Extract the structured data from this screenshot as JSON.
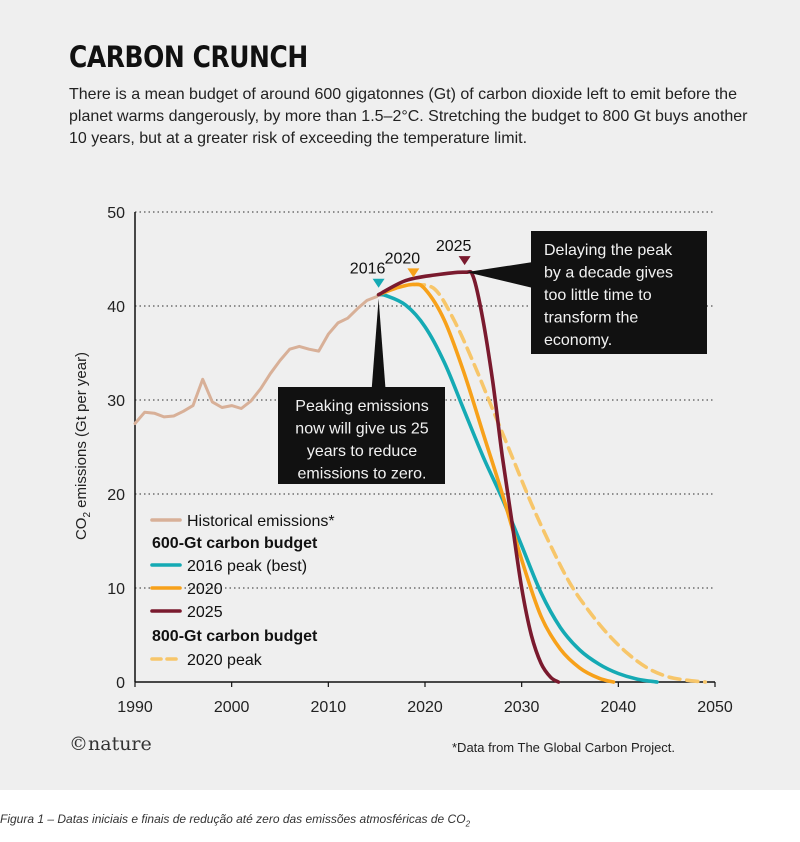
{
  "header": {
    "title": "CARBON CRUNCH",
    "subtitle": "There is a mean budget of around 600 gigatonnes (Gt) of carbon dioxide left to emit before the planet warms dangerously, by more than 1.5–2°C. Stretching the budget to 800 Gt buys another 10 years, but at a greater risk of exceeding the temperature limit."
  },
  "footer": {
    "logo": "©nature",
    "source": "*Data from The Global Carbon Project.",
    "caption_text": "Figura 1 – Datas iniciais e finais de redução até zero das emissões atmosféricas de CO",
    "caption_sub": "2"
  },
  "colors": {
    "historical": "#d8b098",
    "peak2016": "#15aab4",
    "peak2020": "#f7a11a",
    "peak2025": "#7a1a2e",
    "peak2020_800": "#f7c66a",
    "annotation_bg": "#111111"
  },
  "chart_data": {
    "type": "line",
    "ylabel": "CO2 emissions (Gt per year)",
    "ylabel_main": "CO",
    "ylabel_sub": "2",
    "ylabel_rest": " emissions (Gt per year)",
    "xlim": [
      1990,
      2050
    ],
    "ylim": [
      0,
      50
    ],
    "x_ticks": [
      1990,
      2000,
      2010,
      2020,
      2030,
      2040,
      2050
    ],
    "y_ticks": [
      0,
      10,
      20,
      30,
      40,
      50
    ],
    "grid": "horizontal-dotted",
    "legend_placement": "bottom-left",
    "legend": {
      "historical": "Historical emissions*",
      "group600": "600-Gt carbon budget",
      "peak2016": "2016 peak (best)",
      "peak2020": "2020",
      "peak2025": "2025",
      "group800": "800-Gt carbon budget",
      "peak2020_800": "2020 peak"
    },
    "peak_markers": [
      {
        "label": "2016",
        "x": 2015.2,
        "y": 41.2,
        "color_key": "peak2016"
      },
      {
        "label": "2020",
        "x": 2018.8,
        "y": 42.3,
        "color_key": "peak2020"
      },
      {
        "label": "2025",
        "x": 2024.1,
        "y": 43.6,
        "color_key": "peak2025"
      }
    ],
    "annotations": {
      "peak_now": "Peaking emissions now will give us 25 years to reduce emissions to zero.",
      "delay": "Delaying the peak by a decade gives too little time to transform the economy."
    },
    "series": [
      {
        "name": "Historical emissions*",
        "key": "historical",
        "points": [
          [
            1990,
            27.5
          ],
          [
            1991,
            28.7
          ],
          [
            1992,
            28.6
          ],
          [
            1993,
            28.2
          ],
          [
            1994,
            28.3
          ],
          [
            1995,
            28.8
          ],
          [
            1996,
            29.4
          ],
          [
            1997,
            32.2
          ],
          [
            1998,
            29.8
          ],
          [
            1999,
            29.2
          ],
          [
            2000,
            29.4
          ],
          [
            2001,
            29.1
          ],
          [
            2002,
            29.9
          ],
          [
            2003,
            31.2
          ],
          [
            2004,
            32.8
          ],
          [
            2005,
            34.2
          ],
          [
            2006,
            35.4
          ],
          [
            2007,
            35.7
          ],
          [
            2008,
            35.4
          ],
          [
            2009,
            35.2
          ],
          [
            2010,
            37.0
          ],
          [
            2011,
            38.2
          ],
          [
            2012,
            38.7
          ],
          [
            2013,
            39.7
          ],
          [
            2014,
            40.6
          ],
          [
            2015,
            41.0
          ]
        ]
      },
      {
        "name": "2016 peak (best)",
        "key": "peak2016",
        "points": [
          [
            2015.2,
            41.2
          ],
          [
            2016,
            41.1
          ],
          [
            2018,
            40.1
          ],
          [
            2020,
            37.8
          ],
          [
            2022,
            34.0
          ],
          [
            2024,
            29.0
          ],
          [
            2026,
            24.0
          ],
          [
            2028,
            19.5
          ],
          [
            2030,
            14.5
          ],
          [
            2032,
            9.5
          ],
          [
            2034,
            5.8
          ],
          [
            2036,
            3.4
          ],
          [
            2038,
            1.9
          ],
          [
            2040,
            0.9
          ],
          [
            2042,
            0.3
          ],
          [
            2044,
            0
          ]
        ]
      },
      {
        "name": "2020",
        "key": "peak2020",
        "points": [
          [
            2015.2,
            41.2
          ],
          [
            2017,
            41.9
          ],
          [
            2018.8,
            42.3
          ],
          [
            2020,
            41.8
          ],
          [
            2022,
            38.5
          ],
          [
            2024,
            33.0
          ],
          [
            2026,
            26.5
          ],
          [
            2028,
            20.0
          ],
          [
            2030,
            13.0
          ],
          [
            2032,
            7.0
          ],
          [
            2034,
            3.5
          ],
          [
            2036,
            1.5
          ],
          [
            2038,
            0.4
          ],
          [
            2039.5,
            0
          ]
        ]
      },
      {
        "name": "2025",
        "key": "peak2025",
        "points": [
          [
            2015.2,
            41.2
          ],
          [
            2018,
            42.7
          ],
          [
            2021,
            43.3
          ],
          [
            2024.1,
            43.6
          ],
          [
            2025,
            43.1
          ],
          [
            2026,
            38.5
          ],
          [
            2027,
            32.0
          ],
          [
            2028,
            24.0
          ],
          [
            2029,
            17.0
          ],
          [
            2030,
            10.0
          ],
          [
            2031,
            5.0
          ],
          [
            2032,
            2.0
          ],
          [
            2033,
            0.5
          ],
          [
            2033.8,
            0
          ]
        ]
      },
      {
        "name": "2020 peak",
        "key": "peak2020_800",
        "dashed": true,
        "points": [
          [
            2018.8,
            42.3
          ],
          [
            2021,
            41.8
          ],
          [
            2023,
            38.5
          ],
          [
            2025,
            34.0
          ],
          [
            2027,
            29.0
          ],
          [
            2029,
            24.0
          ],
          [
            2031,
            19.0
          ],
          [
            2033,
            14.5
          ],
          [
            2035,
            10.5
          ],
          [
            2037,
            7.5
          ],
          [
            2039,
            5.0
          ],
          [
            2041,
            3.0
          ],
          [
            2043,
            1.5
          ],
          [
            2045,
            0.6
          ],
          [
            2047,
            0.2
          ],
          [
            2049,
            0
          ]
        ]
      }
    ]
  }
}
